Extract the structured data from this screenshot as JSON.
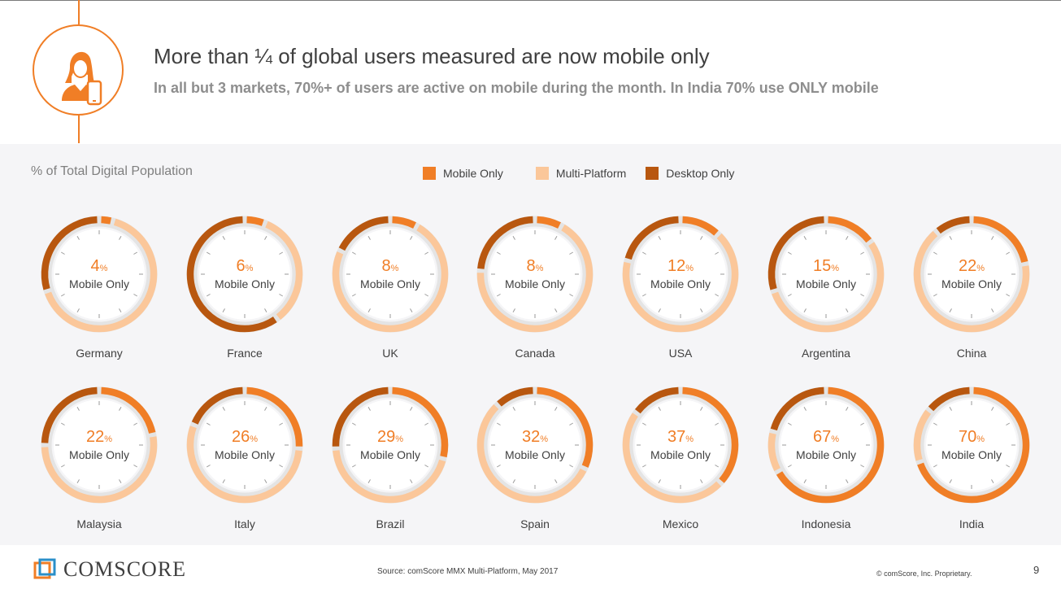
{
  "header": {
    "title": "More than ¼ of global users measured are now mobile only",
    "subtitle": "In all but 3 markets, 70%+ of users are active on mobile during the month. In India 70% use ONLY mobile"
  },
  "panel_label": "% of Total Digital Population",
  "legend": [
    {
      "label": "Mobile Only",
      "color": "#f07e26"
    },
    {
      "label": "Multi-Platform",
      "color": "#fbc79a"
    },
    {
      "label": "Desktop Only",
      "color": "#b8570f"
    }
  ],
  "center_label": "Mobile Only",
  "percent_sign": "%",
  "chart_data": {
    "type": "donut",
    "series": [
      "Mobile Only",
      "Multi-Platform",
      "Desktop Only"
    ],
    "markets": [
      {
        "name": "Germany",
        "mobile_only": 4,
        "multi_platform": 66,
        "desktop_only": 30
      },
      {
        "name": "France",
        "mobile_only": 6,
        "multi_platform": 34,
        "desktop_only": 60
      },
      {
        "name": "UK",
        "mobile_only": 8,
        "multi_platform": 74,
        "desktop_only": 18
      },
      {
        "name": "Canada",
        "mobile_only": 8,
        "multi_platform": 68,
        "desktop_only": 24
      },
      {
        "name": "USA",
        "mobile_only": 12,
        "multi_platform": 67,
        "desktop_only": 21
      },
      {
        "name": "Argentina",
        "mobile_only": 15,
        "multi_platform": 55,
        "desktop_only": 30
      },
      {
        "name": "China",
        "mobile_only": 22,
        "multi_platform": 67,
        "desktop_only": 11
      },
      {
        "name": "Malaysia",
        "mobile_only": 22,
        "multi_platform": 53,
        "desktop_only": 25
      },
      {
        "name": "Italy",
        "mobile_only": 26,
        "multi_platform": 55,
        "desktop_only": 19
      },
      {
        "name": "Brazil",
        "mobile_only": 29,
        "multi_platform": 45,
        "desktop_only": 26
      },
      {
        "name": "Spain",
        "mobile_only": 32,
        "multi_platform": 56,
        "desktop_only": 12
      },
      {
        "name": "Mexico",
        "mobile_only": 37,
        "multi_platform": 48,
        "desktop_only": 15
      },
      {
        "name": "Indonesia",
        "mobile_only": 67,
        "multi_platform": 12,
        "desktop_only": 21
      },
      {
        "name": "India",
        "mobile_only": 70,
        "multi_platform": 16,
        "desktop_only": 14
      }
    ],
    "colors": {
      "mobile_only": "#f07e26",
      "multi_platform": "#fbc79a",
      "desktop_only": "#b8570f"
    }
  },
  "footer": {
    "logo_text": "COMSCORE",
    "source": "Source: comScore MMX Multi-Platform, May 2017",
    "copyright": "© comScore, Inc. Proprietary.",
    "page_number": "9"
  }
}
